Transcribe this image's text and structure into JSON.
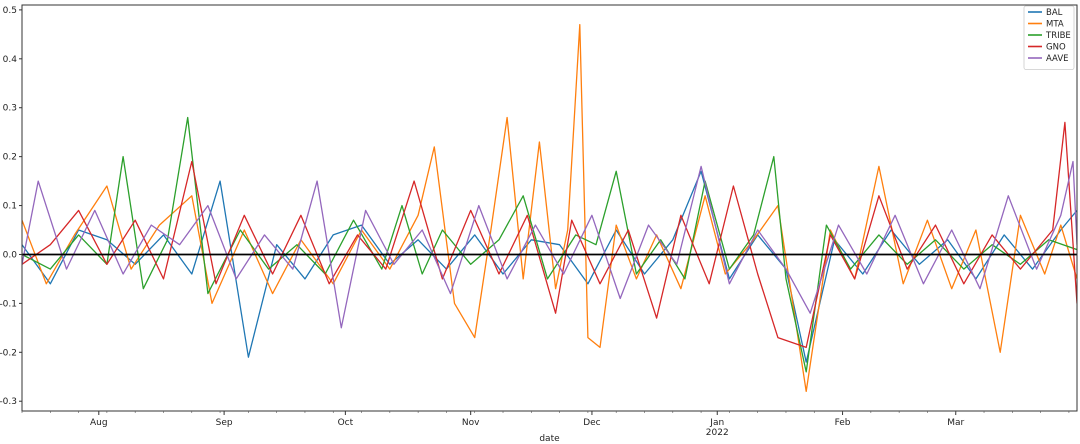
{
  "chart_data": {
    "type": "line",
    "xlabel": "date",
    "ylabel": "",
    "x_range": [
      "2021-07-13",
      "2022-03-31"
    ],
    "ylim": [
      -0.32,
      0.51
    ],
    "y_ticks": [
      -0.3,
      -0.2,
      -0.1,
      0.0,
      0.1,
      0.2,
      0.3,
      0.4,
      0.5
    ],
    "y_tick_labels": [
      "-0.3",
      "-0.2",
      "-0.1",
      "0.0",
      "0.1",
      "0.2",
      "0.3",
      "0.4",
      "0.5"
    ],
    "x_ticks": [
      {
        "date": "2021-08-01",
        "label": "Aug",
        "sublabel": ""
      },
      {
        "date": "2021-09-01",
        "label": "Sep",
        "sublabel": ""
      },
      {
        "date": "2021-10-01",
        "label": "Oct",
        "sublabel": ""
      },
      {
        "date": "2021-11-01",
        "label": "Nov",
        "sublabel": ""
      },
      {
        "date": "2021-12-01",
        "label": "Dec",
        "sublabel": ""
      },
      {
        "date": "2022-01-01",
        "label": "Jan",
        "sublabel": "2022"
      },
      {
        "date": "2022-02-01",
        "label": "Feb",
        "sublabel": ""
      },
      {
        "date": "2022-03-01",
        "label": "Mar",
        "sublabel": ""
      }
    ],
    "grid": false,
    "legend_position": "top-right",
    "zero_line": {
      "y": 0.0,
      "color": "#000000"
    },
    "series": [
      {
        "name": "BAL",
        "color": "#1f77b4",
        "points": [
          [
            "2021-07-13",
            0.02
          ],
          [
            "2021-07-20",
            -0.06
          ],
          [
            "2021-07-27",
            0.05
          ],
          [
            "2021-08-03",
            0.03
          ],
          [
            "2021-08-10",
            -0.02
          ],
          [
            "2021-08-17",
            0.04
          ],
          [
            "2021-08-24",
            -0.04
          ],
          [
            "2021-08-31",
            0.15
          ],
          [
            "2021-09-07",
            -0.21
          ],
          [
            "2021-09-14",
            0.02
          ],
          [
            "2021-09-21",
            -0.05
          ],
          [
            "2021-09-28",
            0.04
          ],
          [
            "2021-10-05",
            0.06
          ],
          [
            "2021-10-12",
            -0.02
          ],
          [
            "2021-10-19",
            0.03
          ],
          [
            "2021-10-26",
            -0.03
          ],
          [
            "2021-11-02",
            0.04
          ],
          [
            "2021-11-09",
            -0.04
          ],
          [
            "2021-11-16",
            0.03
          ],
          [
            "2021-11-23",
            0.02
          ],
          [
            "2021-11-30",
            -0.06
          ],
          [
            "2021-12-07",
            0.05
          ],
          [
            "2021-12-14",
            -0.04
          ],
          [
            "2021-12-21",
            0.03
          ],
          [
            "2021-12-28",
            0.17
          ],
          [
            "2022-01-04",
            -0.05
          ],
          [
            "2022-01-11",
            0.04
          ],
          [
            "2022-01-18",
            -0.03
          ],
          [
            "2022-01-23",
            -0.22
          ],
          [
            "2022-01-30",
            0.03
          ],
          [
            "2022-02-06",
            -0.04
          ],
          [
            "2022-02-13",
            0.05
          ],
          [
            "2022-02-20",
            -0.02
          ],
          [
            "2022-02-27",
            0.03
          ],
          [
            "2022-03-06",
            -0.05
          ],
          [
            "2022-03-13",
            0.04
          ],
          [
            "2022-03-20",
            -0.03
          ],
          [
            "2022-03-27",
            0.05
          ],
          [
            "2022-03-31",
            0.09
          ]
        ]
      },
      {
        "name": "MTA",
        "color": "#ff7f0e",
        "points": [
          [
            "2021-07-13",
            0.07
          ],
          [
            "2021-07-19",
            -0.06
          ],
          [
            "2021-07-26",
            0.04
          ],
          [
            "2021-08-03",
            0.14
          ],
          [
            "2021-08-09",
            -0.03
          ],
          [
            "2021-08-16",
            0.06
          ],
          [
            "2021-08-24",
            0.12
          ],
          [
            "2021-08-29",
            -0.1
          ],
          [
            "2021-09-06",
            0.05
          ],
          [
            "2021-09-13",
            -0.08
          ],
          [
            "2021-09-20",
            0.03
          ],
          [
            "2021-09-28",
            -0.06
          ],
          [
            "2021-10-05",
            0.05
          ],
          [
            "2021-10-12",
            -0.03
          ],
          [
            "2021-10-19",
            0.08
          ],
          [
            "2021-10-23",
            0.22
          ],
          [
            "2021-10-28",
            -0.1
          ],
          [
            "2021-11-02",
            -0.17
          ],
          [
            "2021-11-06",
            0.05
          ],
          [
            "2021-11-10",
            0.28
          ],
          [
            "2021-11-14",
            -0.05
          ],
          [
            "2021-11-18",
            0.23
          ],
          [
            "2021-11-22",
            -0.07
          ],
          [
            "2021-11-25",
            0.05
          ],
          [
            "2021-11-28",
            0.47
          ],
          [
            "2021-11-30",
            -0.17
          ],
          [
            "2021-12-03",
            -0.19
          ],
          [
            "2021-12-07",
            0.06
          ],
          [
            "2021-12-12",
            -0.05
          ],
          [
            "2021-12-17",
            0.04
          ],
          [
            "2021-12-23",
            -0.07
          ],
          [
            "2021-12-29",
            0.12
          ],
          [
            "2022-01-03",
            -0.04
          ],
          [
            "2022-01-10",
            0.03
          ],
          [
            "2022-01-16",
            0.1
          ],
          [
            "2022-01-23",
            -0.28
          ],
          [
            "2022-01-29",
            0.05
          ],
          [
            "2022-02-04",
            -0.05
          ],
          [
            "2022-02-10",
            0.18
          ],
          [
            "2022-02-16",
            -0.06
          ],
          [
            "2022-02-22",
            0.07
          ],
          [
            "2022-02-28",
            -0.07
          ],
          [
            "2022-03-06",
            0.05
          ],
          [
            "2022-03-12",
            -0.2
          ],
          [
            "2022-03-17",
            0.08
          ],
          [
            "2022-03-23",
            -0.04
          ],
          [
            "2022-03-27",
            0.06
          ],
          [
            "2022-03-31",
            -0.05
          ]
        ]
      },
      {
        "name": "TRIBE",
        "color": "#2ca02c",
        "points": [
          [
            "2021-07-13",
            0.0
          ],
          [
            "2021-07-20",
            -0.03
          ],
          [
            "2021-07-27",
            0.04
          ],
          [
            "2021-08-03",
            -0.02
          ],
          [
            "2021-08-07",
            0.2
          ],
          [
            "2021-08-12",
            -0.07
          ],
          [
            "2021-08-18",
            0.03
          ],
          [
            "2021-08-23",
            0.28
          ],
          [
            "2021-08-28",
            -0.08
          ],
          [
            "2021-09-05",
            0.05
          ],
          [
            "2021-09-12",
            -0.03
          ],
          [
            "2021-09-19",
            0.02
          ],
          [
            "2021-09-26",
            -0.04
          ],
          [
            "2021-10-03",
            0.07
          ],
          [
            "2021-10-10",
            -0.03
          ],
          [
            "2021-10-15",
            0.1
          ],
          [
            "2021-10-20",
            -0.04
          ],
          [
            "2021-10-25",
            0.05
          ],
          [
            "2021-11-01",
            -0.02
          ],
          [
            "2021-11-08",
            0.03
          ],
          [
            "2021-11-14",
            0.12
          ],
          [
            "2021-11-20",
            -0.05
          ],
          [
            "2021-11-27",
            0.04
          ],
          [
            "2021-12-02",
            0.02
          ],
          [
            "2021-12-07",
            0.17
          ],
          [
            "2021-12-12",
            -0.04
          ],
          [
            "2021-12-18",
            0.03
          ],
          [
            "2021-12-24",
            -0.05
          ],
          [
            "2021-12-29",
            0.15
          ],
          [
            "2022-01-04",
            -0.03
          ],
          [
            "2022-01-10",
            0.04
          ],
          [
            "2022-01-15",
            0.2
          ],
          [
            "2022-01-18",
            -0.05
          ],
          [
            "2022-01-23",
            -0.24
          ],
          [
            "2022-01-28",
            0.06
          ],
          [
            "2022-02-03",
            -0.03
          ],
          [
            "2022-02-10",
            0.04
          ],
          [
            "2022-02-17",
            -0.02
          ],
          [
            "2022-02-24",
            0.03
          ],
          [
            "2022-03-03",
            -0.03
          ],
          [
            "2022-03-10",
            0.02
          ],
          [
            "2022-03-17",
            -0.02
          ],
          [
            "2022-03-24",
            0.03
          ],
          [
            "2022-03-31",
            0.01
          ]
        ]
      },
      {
        "name": "GNO",
        "color": "#d62728",
        "points": [
          [
            "2021-07-13",
            -0.02
          ],
          [
            "2021-07-20",
            0.02
          ],
          [
            "2021-07-27",
            0.09
          ],
          [
            "2021-08-03",
            -0.02
          ],
          [
            "2021-08-10",
            0.07
          ],
          [
            "2021-08-17",
            -0.05
          ],
          [
            "2021-08-24",
            0.19
          ],
          [
            "2021-08-30",
            -0.06
          ],
          [
            "2021-09-06",
            0.08
          ],
          [
            "2021-09-13",
            -0.04
          ],
          [
            "2021-09-20",
            0.08
          ],
          [
            "2021-09-27",
            -0.06
          ],
          [
            "2021-10-04",
            0.04
          ],
          [
            "2021-10-11",
            -0.03
          ],
          [
            "2021-10-18",
            0.15
          ],
          [
            "2021-10-25",
            -0.05
          ],
          [
            "2021-11-01",
            0.09
          ],
          [
            "2021-11-08",
            -0.04
          ],
          [
            "2021-11-15",
            0.08
          ],
          [
            "2021-11-22",
            -0.12
          ],
          [
            "2021-11-26",
            0.07
          ],
          [
            "2021-12-03",
            -0.06
          ],
          [
            "2021-12-10",
            0.05
          ],
          [
            "2021-12-17",
            -0.13
          ],
          [
            "2021-12-23",
            0.08
          ],
          [
            "2021-12-30",
            -0.06
          ],
          [
            "2022-01-05",
            0.14
          ],
          [
            "2022-01-11",
            -0.04
          ],
          [
            "2022-01-16",
            -0.17
          ],
          [
            "2022-01-23",
            -0.19
          ],
          [
            "2022-01-29",
            0.04
          ],
          [
            "2022-02-04",
            -0.05
          ],
          [
            "2022-02-10",
            0.12
          ],
          [
            "2022-02-17",
            -0.03
          ],
          [
            "2022-02-24",
            0.06
          ],
          [
            "2022-03-03",
            -0.06
          ],
          [
            "2022-03-10",
            0.04
          ],
          [
            "2022-03-17",
            -0.03
          ],
          [
            "2022-03-25",
            0.05
          ],
          [
            "2022-03-28",
            0.27
          ],
          [
            "2022-03-31",
            -0.1
          ]
        ]
      },
      {
        "name": "AAVE",
        "color": "#9467bd",
        "points": [
          [
            "2021-07-13",
            -0.02
          ],
          [
            "2021-07-17",
            0.15
          ],
          [
            "2021-07-24",
            -0.03
          ],
          [
            "2021-07-31",
            0.09
          ],
          [
            "2021-08-07",
            -0.04
          ],
          [
            "2021-08-14",
            0.06
          ],
          [
            "2021-08-21",
            0.02
          ],
          [
            "2021-08-28",
            0.1
          ],
          [
            "2021-09-04",
            -0.05
          ],
          [
            "2021-09-11",
            0.04
          ],
          [
            "2021-09-18",
            -0.03
          ],
          [
            "2021-09-24",
            0.15
          ],
          [
            "2021-09-30",
            -0.15
          ],
          [
            "2021-10-06",
            0.09
          ],
          [
            "2021-10-13",
            -0.02
          ],
          [
            "2021-10-20",
            0.05
          ],
          [
            "2021-10-27",
            -0.08
          ],
          [
            "2021-11-03",
            0.1
          ],
          [
            "2021-11-10",
            -0.05
          ],
          [
            "2021-11-17",
            0.06
          ],
          [
            "2021-11-24",
            -0.04
          ],
          [
            "2021-12-01",
            0.08
          ],
          [
            "2021-12-08",
            -0.09
          ],
          [
            "2021-12-15",
            0.06
          ],
          [
            "2021-12-22",
            -0.02
          ],
          [
            "2021-12-28",
            0.18
          ],
          [
            "2022-01-04",
            -0.06
          ],
          [
            "2022-01-11",
            0.05
          ],
          [
            "2022-01-18",
            -0.03
          ],
          [
            "2022-01-24",
            -0.12
          ],
          [
            "2022-01-31",
            0.06
          ],
          [
            "2022-02-07",
            -0.04
          ],
          [
            "2022-02-14",
            0.08
          ],
          [
            "2022-02-21",
            -0.06
          ],
          [
            "2022-02-28",
            0.05
          ],
          [
            "2022-03-07",
            -0.07
          ],
          [
            "2022-03-14",
            0.12
          ],
          [
            "2022-03-21",
            -0.03
          ],
          [
            "2022-03-27",
            0.08
          ],
          [
            "2022-03-30",
            0.19
          ],
          [
            "2022-03-31",
            0.02
          ]
        ]
      }
    ]
  }
}
